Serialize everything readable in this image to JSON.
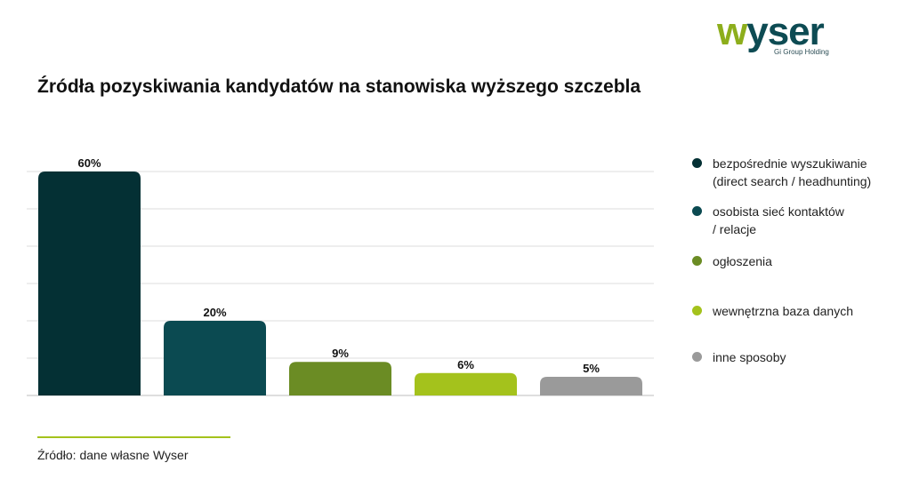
{
  "brand": {
    "logo_w": "w",
    "logo_rest": "yser",
    "logo_sub": "Gi Group Holding"
  },
  "title": "Źródła pozyskiwania kandydatów na stanowiska wyższego szczebla",
  "source": "Źródło: dane własne Wyser",
  "chart_data": {
    "type": "bar",
    "title": "Źródła pozyskiwania kandydatów na stanowiska wyższego szczebla",
    "categories": [
      "bezpośrednie wyszukiwanie\n(direct search / headhunting)",
      "osobista sieć kontaktów\n/ relacje",
      "ogłoszenia",
      "wewnętrzna baza danych",
      "inne sposoby"
    ],
    "values": [
      60,
      20,
      9,
      6,
      5
    ],
    "value_labels": [
      "60%",
      "20%",
      "9%",
      "6%",
      "5%"
    ],
    "colors": [
      "#043034",
      "#0b4a51",
      "#6b8c24",
      "#a4c21c",
      "#9a9a9a"
    ],
    "ylim": [
      0,
      60
    ],
    "grid": true,
    "legend_position": "right",
    "xlabel": "",
    "ylabel": ""
  }
}
